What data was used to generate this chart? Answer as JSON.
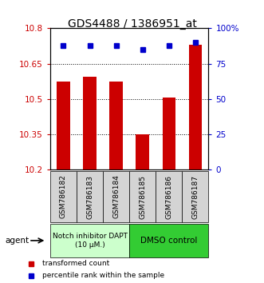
{
  "title": "GDS4488 / 1386951_at",
  "samples": [
    "GSM786182",
    "GSM786183",
    "GSM786184",
    "GSM786185",
    "GSM786186",
    "GSM786187"
  ],
  "bar_values": [
    10.575,
    10.595,
    10.575,
    10.35,
    10.505,
    10.73
  ],
  "dot_values": [
    88,
    88,
    88,
    85,
    88,
    90
  ],
  "bar_bottom": 10.2,
  "ylim_left": [
    10.2,
    10.8
  ],
  "ylim_right": [
    0,
    100
  ],
  "yticks_left": [
    10.2,
    10.35,
    10.5,
    10.65,
    10.8
  ],
  "ytick_labels_left": [
    "10.2",
    "10.35",
    "10.5",
    "10.65",
    "10.8"
  ],
  "yticks_right": [
    0,
    25,
    50,
    75,
    100
  ],
  "ytick_labels_right": [
    "0",
    "25",
    "50",
    "75",
    "100%"
  ],
  "bar_color": "#cc0000",
  "dot_color": "#0000cc",
  "group1_label": "Notch inhibitor DAPT\n(10 μM.)",
  "group2_label": "DMSO control",
  "group1_color": "#ccffcc",
  "group2_color": "#33cc33",
  "group1_samples": [
    0,
    1,
    2
  ],
  "group2_samples": [
    3,
    4,
    5
  ],
  "agent_label": "agent",
  "legend1_label": "transformed count",
  "legend2_label": "percentile rank within the sample",
  "title_fontsize": 10,
  "tick_fontsize": 7.5,
  "bar_width": 0.5
}
